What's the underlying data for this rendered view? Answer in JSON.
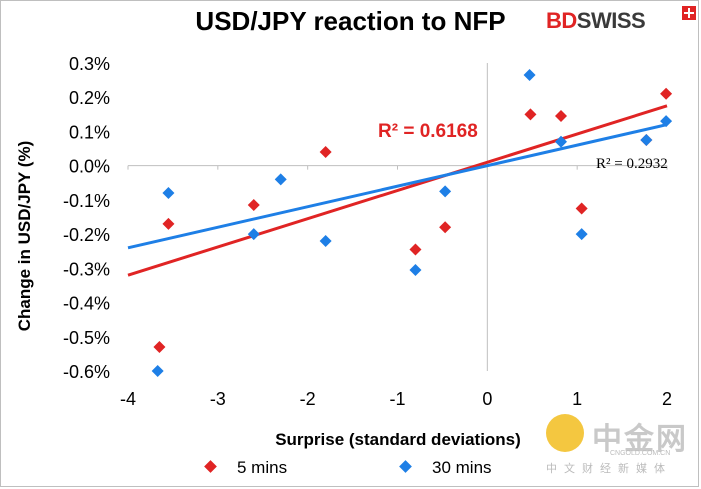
{
  "header": {
    "title": "USD/JPY reaction to NFP"
  },
  "logo": {
    "part1": "BD",
    "part2": "SWISS"
  },
  "watermark": {
    "name": "中金网",
    "domain": "CNGOLD.COM.CN",
    "subtitle": "中文财经新媒体"
  },
  "chart_data": {
    "type": "scatter",
    "xlabel": "Surprise (standard deviations)",
    "ylabel": "Change in USD/JPY  (%)",
    "xlim": [
      -4,
      2
    ],
    "ylim": [
      -0.6,
      0.3
    ],
    "x_ticks": [
      "-4",
      "-3",
      "-2",
      "-1",
      "0",
      "1",
      "2"
    ],
    "y_ticks": [
      "0.3%",
      "0.2%",
      "0.1%",
      "0.0%",
      "-0.1%",
      "-0.2%",
      "-0.3%",
      "-0.4%",
      "-0.5%",
      "-0.6%"
    ],
    "x_tick_values": [
      -4,
      -3,
      -2,
      -1,
      0,
      1,
      2
    ],
    "y_tick_values": [
      0.3,
      0.2,
      0.1,
      0.0,
      -0.1,
      -0.2,
      -0.3,
      -0.4,
      -0.5,
      -0.6
    ],
    "grid": false,
    "legend_position": "bottom",
    "series": [
      {
        "name": "5 mins",
        "color": "#e02424",
        "points": [
          [
            -3.65,
            -0.53
          ],
          [
            -3.55,
            -0.17
          ],
          [
            -2.6,
            -0.115
          ],
          [
            -1.8,
            0.04
          ],
          [
            -0.8,
            -0.245
          ],
          [
            -0.47,
            -0.18
          ],
          [
            0.48,
            0.15
          ],
          [
            0.82,
            0.145
          ],
          [
            1.05,
            -0.125
          ],
          [
            1.77,
            0.075
          ],
          [
            1.99,
            0.21
          ]
        ],
        "trend": {
          "slope": 0.0825,
          "intercept": 0.01,
          "label": "R² = 0.6168"
        }
      },
      {
        "name": "30 mins",
        "color": "#1e7fe6",
        "points": [
          [
            -3.67,
            -0.6
          ],
          [
            -3.55,
            -0.08
          ],
          [
            -2.6,
            -0.2
          ],
          [
            -2.3,
            -0.04
          ],
          [
            -1.8,
            -0.22
          ],
          [
            -0.8,
            -0.305
          ],
          [
            -0.47,
            -0.075
          ],
          [
            0.47,
            0.265
          ],
          [
            0.82,
            0.07
          ],
          [
            1.05,
            -0.2
          ],
          [
            1.77,
            0.075
          ],
          [
            1.99,
            0.13
          ]
        ],
        "trend": {
          "slope": 0.06,
          "intercept": 0.0,
          "label": "R² = 0.2932"
        }
      }
    ]
  }
}
